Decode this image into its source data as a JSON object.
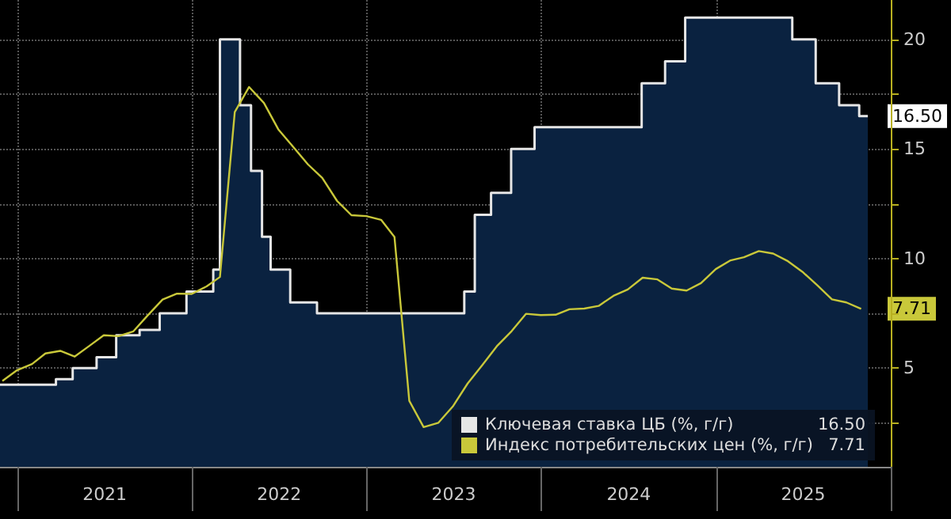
{
  "chart_data": {
    "type": "line",
    "xlim": [
      "2020-11-25",
      "2026-01-01"
    ],
    "xticks": [
      {
        "value": "2021-01-01",
        "label": null
      },
      {
        "value": "2021-07-02",
        "label": "2021"
      },
      {
        "value": "2022-01-01",
        "label": null
      },
      {
        "value": "2022-07-02",
        "label": "2022"
      },
      {
        "value": "2023-01-01",
        "label": null
      },
      {
        "value": "2023-07-02",
        "label": "2023"
      },
      {
        "value": "2024-01-01",
        "label": null
      },
      {
        "value": "2024-07-02",
        "label": "2024"
      },
      {
        "value": "2025-01-01",
        "label": null
      },
      {
        "value": "2025-07-02",
        "label": "2025"
      },
      {
        "value": "2026-01-01",
        "label": null
      }
    ],
    "ylim": [
      0.5,
      21.8
    ],
    "yticks": [
      {
        "value": 2.5,
        "label": null
      },
      5,
      {
        "value": 7.5,
        "label": null
      },
      10,
      {
        "value": 12.5,
        "label": null
      },
      15,
      {
        "value": 17.5,
        "label": null
      },
      20
    ],
    "grid": true,
    "legend": "bottom right",
    "marker": "none",
    "series": [
      {
        "name": "Ключевая ставка ЦБ (%, г/г)",
        "type": "area",
        "color": "#e6e6e6",
        "x": [
          "2020-11-25",
          "2021-03-22",
          "2021-03-22",
          "2021-04-26",
          "2021-04-26",
          "2021-06-15",
          "2021-06-15",
          "2021-07-26",
          "2021-07-26",
          "2021-09-13",
          "2021-09-13",
          "2021-10-25",
          "2021-10-25",
          "2021-12-20",
          "2021-12-20",
          "2022-02-14",
          "2022-02-14",
          "2022-02-28",
          "2022-02-28",
          "2022-04-11",
          "2022-04-11",
          "2022-05-04",
          "2022-05-04",
          "2022-05-27",
          "2022-05-27",
          "2022-06-14",
          "2022-06-14",
          "2022-07-25",
          "2022-07-25",
          "2022-09-19",
          "2022-09-19",
          "2023-07-24",
          "2023-07-24",
          "2023-08-15",
          "2023-08-15",
          "2023-09-18",
          "2023-09-18",
          "2023-10-30",
          "2023-10-30",
          "2023-12-18",
          "2023-12-18",
          "2024-07-29",
          "2024-07-29",
          "2024-09-16",
          "2024-09-16",
          "2024-10-28",
          "2024-10-28",
          "2025-06-09",
          "2025-06-09",
          "2025-07-28",
          "2025-07-28",
          "2025-09-15",
          "2025-09-15",
          "2025-10-27",
          "2025-10-27",
          "2025-11-14"
        ],
        "values": [
          4.25,
          4.25,
          4.5,
          4.5,
          5,
          5,
          5.5,
          5.5,
          6.5,
          6.5,
          6.75,
          6.75,
          7.5,
          7.5,
          8.5,
          8.5,
          9.5,
          9.5,
          20,
          20,
          17,
          17,
          14,
          14,
          11,
          11,
          9.5,
          9.5,
          8,
          8,
          7.5,
          7.5,
          8.5,
          8.5,
          12,
          12,
          13,
          13,
          15,
          15,
          16,
          16,
          18,
          18,
          19,
          19,
          21,
          21,
          20,
          20,
          18,
          18,
          17,
          17,
          16.5,
          16.5
        ],
        "value_labels": [
          null,
          null,
          null,
          null,
          null,
          null,
          null,
          null,
          null,
          null,
          null,
          null,
          null,
          null,
          null,
          null,
          null,
          null,
          null,
          null,
          null,
          null,
          null,
          null,
          null,
          null,
          null,
          null,
          null,
          null,
          null,
          null,
          null,
          null,
          null,
          null,
          null,
          null,
          null,
          null,
          null,
          null,
          null,
          null,
          null,
          null,
          null,
          null,
          null,
          null,
          null,
          null,
          null,
          null,
          null,
          "16.50"
        ]
      },
      {
        "name": "Индекс потребительских цен (%, г/г)",
        "color": "#c9c83a",
        "x": [
          "2020-11-30",
          "2020-12-31",
          "2021-01-31",
          "2021-02-28",
          "2021-03-31",
          "2021-04-30",
          "2021-05-31",
          "2021-06-30",
          "2021-07-31",
          "2021-08-31",
          "2021-09-30",
          "2021-10-31",
          "2021-11-30",
          "2021-12-31",
          "2022-01-31",
          "2022-02-28",
          "2022-03-31",
          "2022-04-30",
          "2022-05-31",
          "2022-06-30",
          "2022-07-31",
          "2022-08-31",
          "2022-09-30",
          "2022-10-31",
          "2022-11-30",
          "2022-12-31",
          "2023-01-31",
          "2023-02-28",
          "2023-03-31",
          "2023-04-30",
          "2023-05-31",
          "2023-06-30",
          "2023-07-31",
          "2023-08-31",
          "2023-09-30",
          "2023-10-31",
          "2023-11-30",
          "2023-12-31",
          "2024-01-31",
          "2024-02-29",
          "2024-03-31",
          "2024-04-30",
          "2024-05-31",
          "2024-06-30",
          "2024-07-31",
          "2024-08-31",
          "2024-09-30",
          "2024-10-31",
          "2024-11-30",
          "2024-12-31",
          "2025-01-31",
          "2025-02-28",
          "2025-03-31",
          "2025-04-30",
          "2025-05-31",
          "2025-06-30",
          "2025-07-31",
          "2025-08-31",
          "2025-09-30",
          "2025-10-31"
        ],
        "values": [
          4.42,
          4.91,
          5.19,
          5.67,
          5.79,
          5.53,
          6.02,
          6.5,
          6.46,
          6.68,
          7.41,
          8.13,
          8.4,
          8.39,
          8.73,
          9.16,
          16.69,
          17.83,
          17.1,
          15.9,
          15.1,
          14.3,
          13.68,
          12.63,
          11.98,
          11.94,
          11.77,
          10.99,
          3.51,
          2.31,
          2.51,
          3.25,
          4.3,
          5.15,
          6.0,
          6.69,
          7.48,
          7.42,
          7.44,
          7.69,
          7.72,
          7.84,
          8.3,
          8.59,
          9.13,
          9.05,
          8.63,
          8.54,
          8.88,
          9.52,
          9.92,
          10.06,
          10.34,
          10.23,
          9.88,
          9.4,
          8.79,
          8.14,
          8.0,
          7.71
        ],
        "value_labels": [
          null,
          null,
          null,
          null,
          null,
          null,
          null,
          null,
          null,
          null,
          null,
          null,
          null,
          null,
          null,
          null,
          null,
          null,
          null,
          null,
          null,
          null,
          null,
          null,
          null,
          null,
          null,
          null,
          null,
          null,
          null,
          null,
          null,
          null,
          null,
          null,
          null,
          null,
          null,
          null,
          null,
          null,
          null,
          null,
          null,
          null,
          null,
          null,
          null,
          null,
          null,
          null,
          null,
          null,
          null,
          null,
          null,
          null,
          null,
          "7.71"
        ]
      }
    ]
  }
}
